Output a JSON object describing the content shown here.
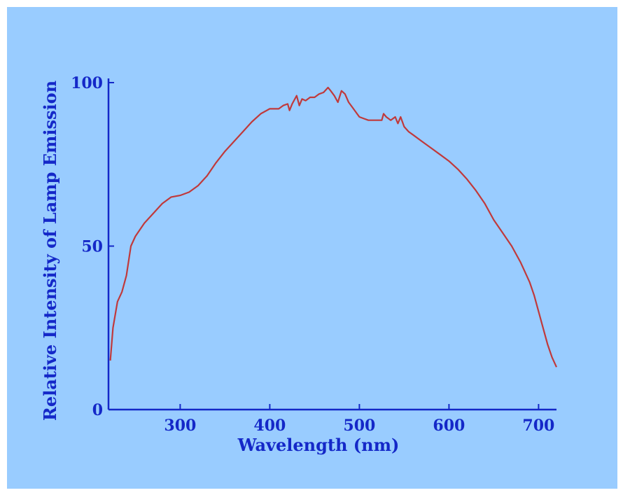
{
  "chart_data": {
    "type": "line",
    "xlabel": "Wavelength (nm)",
    "ylabel": "Relative Intensity of Lamp Emission",
    "xlim": [
      220,
      720
    ],
    "ylim": [
      0,
      100
    ],
    "x_ticks": [
      300,
      400,
      500,
      600,
      700
    ],
    "y_ticks": [
      0,
      50,
      100
    ],
    "grid": false,
    "colors": {
      "background": "#99CCFF",
      "axis": "#1428C8",
      "line": "#C0393B"
    },
    "series": [
      {
        "x": [
          222,
          225,
          230,
          235,
          240,
          245,
          250,
          260,
          270,
          280,
          290,
          300,
          310,
          320,
          330,
          340,
          350,
          360,
          370,
          380,
          390,
          400,
          410,
          415,
          420,
          422,
          425,
          430,
          433,
          436,
          440,
          445,
          450,
          455,
          460,
          465,
          468,
          472,
          476,
          480,
          484,
          488,
          492,
          496,
          500,
          505,
          510,
          515,
          520,
          525,
          527,
          530,
          535,
          540,
          543,
          546,
          550,
          555,
          560,
          570,
          580,
          590,
          600,
          610,
          620,
          630,
          640,
          650,
          660,
          670,
          680,
          690,
          695,
          700,
          705,
          710,
          715,
          720
        ],
        "y": [
          15,
          25,
          33,
          36,
          41,
          50,
          53,
          57,
          60,
          63,
          65,
          65.5,
          66.5,
          68.5,
          71.5,
          75.5,
          79,
          82,
          85,
          88,
          90.5,
          92,
          92,
          93,
          93.5,
          91.5,
          93.5,
          96,
          93,
          95,
          94.5,
          95.5,
          95.5,
          96.5,
          97,
          98.5,
          97.5,
          96,
          94,
          97.5,
          96.5,
          94,
          92.5,
          91,
          89.5,
          89,
          88.5,
          88.5,
          88.5,
          88.5,
          90.5,
          89.5,
          88.5,
          89.5,
          87.5,
          89.5,
          86.5,
          85,
          84,
          82,
          80,
          78,
          76,
          73.5,
          70.5,
          67,
          63,
          58,
          54,
          50,
          45,
          39,
          35,
          30,
          25,
          20,
          16,
          13
        ]
      }
    ]
  }
}
